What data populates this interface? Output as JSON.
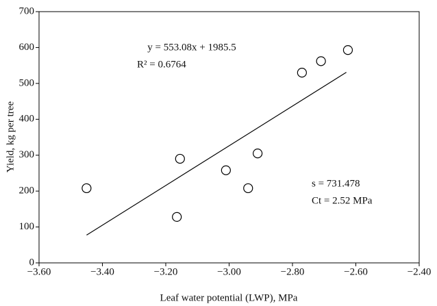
{
  "chart_data": {
    "type": "scatter",
    "x_label": "Leaf water potential (LWP), MPa",
    "y_label": "Yield, kg per tree",
    "xlim": [
      -3.6,
      -2.4
    ],
    "xticks": [
      {
        "value": -3.6,
        "label": "−3.60"
      },
      {
        "value": -3.4,
        "label": "−3.40"
      },
      {
        "value": -3.2,
        "label": "−3.20"
      },
      {
        "value": -3.0,
        "label": "−3.00"
      },
      {
        "value": -2.8,
        "label": "−2.80"
      },
      {
        "value": -2.6,
        "label": "−2.60"
      },
      {
        "value": -2.4,
        "label": "−2.40"
      }
    ],
    "ylim": [
      0,
      700
    ],
    "yticks": [
      0,
      100,
      200,
      300,
      400,
      500,
      600,
      700
    ],
    "series": [
      {
        "color": "#000000",
        "x": [
          -3.45,
          -3.165,
          -3.155,
          -3.01,
          -2.94,
          -2.91,
          -2.77,
          -2.71,
          -2.625
        ],
        "values": [
          208,
          128,
          290,
          258,
          208,
          305,
          530,
          562,
          593
        ]
      }
    ],
    "trendline": {
      "color": "#000000",
      "x": [
        -3.45,
        -2.63
      ],
      "values": [
        77.4,
        530.9
      ]
    },
    "annotations": [
      "y = 553.08x + 1985.5",
      "R² = 0.6764",
      "s = 731.478",
      "Ct = 2.52 MPa"
    ]
  }
}
